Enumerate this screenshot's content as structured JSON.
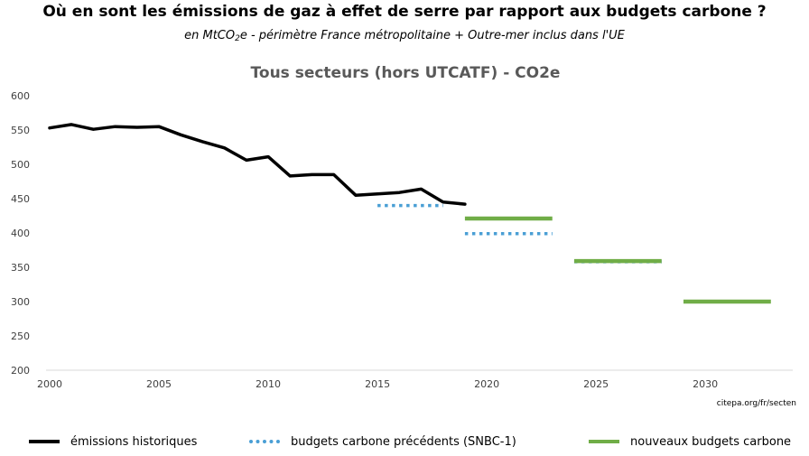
{
  "header": {
    "title": "Où en sont les émissions de gaz à effet de serre par rapport aux budgets carbone ?",
    "subtitle_pre": "en MtCO",
    "subtitle_sub": "2",
    "subtitle_post": "e - périmètre France métropolitaine + Outre-mer inclus dans l'UE"
  },
  "source": "citepa.org/fr/secten",
  "chart_data": {
    "type": "line",
    "title": "Tous secteurs (hors UTCATF) - CO2e",
    "xlabel": "",
    "ylabel": "",
    "xlim": [
      2000,
      2034
    ],
    "ylim": [
      200,
      600
    ],
    "xticks": [
      2000,
      2005,
      2010,
      2015,
      2020,
      2025,
      2030
    ],
    "yticks": [
      200,
      250,
      300,
      350,
      400,
      450,
      500,
      550,
      600
    ],
    "grid": false,
    "legend_position": "bottom",
    "colors": {
      "historical": "#000000",
      "snbc1": "#4a9fd5",
      "new_budgets": "#70ad47",
      "axis": "#d9d9d9",
      "title": "#595959"
    },
    "series": [
      {
        "name": "émissions historiques",
        "style": "solid",
        "x": [
          2000,
          2001,
          2002,
          2003,
          2004,
          2005,
          2006,
          2007,
          2008,
          2009,
          2010,
          2011,
          2012,
          2013,
          2014,
          2015,
          2016,
          2017,
          2018,
          2019
        ],
        "y": [
          553,
          558,
          551,
          555,
          554,
          555,
          543,
          533,
          524,
          506,
          511,
          483,
          485,
          485,
          455,
          457,
          459,
          464,
          445,
          442
        ]
      },
      {
        "name": "budgets carbone précédents (SNBC-1)",
        "style": "dotted",
        "segments": [
          {
            "x": [
              2015,
              2018
            ],
            "y": 440
          },
          {
            "x": [
              2019,
              2023
            ],
            "y": 399
          },
          {
            "x": [
              2024,
              2028
            ],
            "y": 358
          }
        ]
      },
      {
        "name": "nouveaux budgets carbone",
        "style": "solid",
        "segments": [
          {
            "x": [
              2019,
              2023
            ],
            "y": 421
          },
          {
            "x": [
              2024,
              2028
            ],
            "y": 359
          },
          {
            "x": [
              2029,
              2033
            ],
            "y": 300
          }
        ]
      }
    ]
  }
}
